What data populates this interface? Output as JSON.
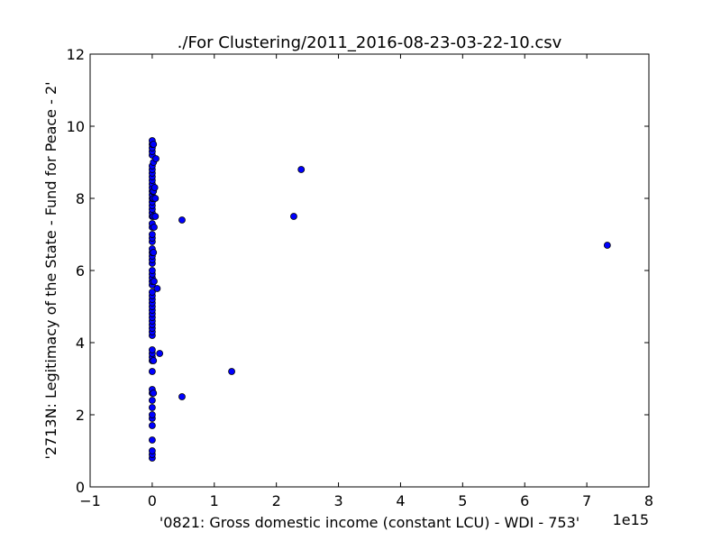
{
  "chart_data": {
    "type": "scatter",
    "title": "./For Clustering/2011_2016-08-23-03-22-10.csv",
    "xlabel": "'0821: Gross domestic income  (constant LCU) - WDI - 753'",
    "ylabel": "'2713N: Legitimacy of the State - Fund for Peace - 2'",
    "x_offset_label": "1e15",
    "xlim": [
      -1,
      8
    ],
    "ylim": [
      0,
      12
    ],
    "xticks": [
      -1,
      0,
      1,
      2,
      3,
      4,
      5,
      6,
      7,
      8
    ],
    "xtick_labels": [
      "−1",
      "0",
      "1",
      "2",
      "3",
      "4",
      "5",
      "6",
      "7",
      "8"
    ],
    "yticks": [
      0,
      2,
      4,
      6,
      8,
      10,
      12
    ],
    "ytick_labels": [
      "0",
      "2",
      "4",
      "6",
      "8",
      "10",
      "12"
    ],
    "grid": false,
    "marker_color": "#0000ff",
    "marker_edge": "#000000",
    "points": [
      {
        "x": 0.0,
        "y": 0.8
      },
      {
        "x": 0.0,
        "y": 0.9
      },
      {
        "x": 0.0,
        "y": 1.0
      },
      {
        "x": 0.0,
        "y": 1.3
      },
      {
        "x": 0.0,
        "y": 1.7
      },
      {
        "x": 0.0,
        "y": 1.9
      },
      {
        "x": 0.0,
        "y": 2.0
      },
      {
        "x": 0.0,
        "y": 2.2
      },
      {
        "x": 0.0,
        "y": 2.4
      },
      {
        "x": 0.0,
        "y": 2.6
      },
      {
        "x": 0.0,
        "y": 2.7
      },
      {
        "x": 0.0,
        "y": 3.2
      },
      {
        "x": 0.0,
        "y": 3.5
      },
      {
        "x": 0.0,
        "y": 3.6
      },
      {
        "x": 0.0,
        "y": 3.7
      },
      {
        "x": 0.0,
        "y": 3.8
      },
      {
        "x": 0.0,
        "y": 4.2
      },
      {
        "x": 0.0,
        "y": 4.3
      },
      {
        "x": 0.0,
        "y": 4.4
      },
      {
        "x": 0.0,
        "y": 4.5
      },
      {
        "x": 0.0,
        "y": 4.6
      },
      {
        "x": 0.0,
        "y": 4.7
      },
      {
        "x": 0.0,
        "y": 4.8
      },
      {
        "x": 0.0,
        "y": 4.9
      },
      {
        "x": 0.0,
        "y": 5.0
      },
      {
        "x": 0.0,
        "y": 5.1
      },
      {
        "x": 0.0,
        "y": 5.2
      },
      {
        "x": 0.0,
        "y": 5.3
      },
      {
        "x": 0.0,
        "y": 5.4
      },
      {
        "x": 0.0,
        "y": 5.6
      },
      {
        "x": 0.0,
        "y": 5.7
      },
      {
        "x": 0.0,
        "y": 5.8
      },
      {
        "x": 0.0,
        "y": 5.9
      },
      {
        "x": 0.0,
        "y": 6.0
      },
      {
        "x": 0.0,
        "y": 6.2
      },
      {
        "x": 0.0,
        "y": 6.3
      },
      {
        "x": 0.0,
        "y": 6.4
      },
      {
        "x": 0.0,
        "y": 6.5
      },
      {
        "x": 0.0,
        "y": 6.6
      },
      {
        "x": 0.0,
        "y": 6.8
      },
      {
        "x": 0.0,
        "y": 6.9
      },
      {
        "x": 0.0,
        "y": 7.0
      },
      {
        "x": 0.0,
        "y": 7.2
      },
      {
        "x": 0.0,
        "y": 7.3
      },
      {
        "x": 0.0,
        "y": 7.5
      },
      {
        "x": 0.0,
        "y": 7.6
      },
      {
        "x": 0.0,
        "y": 7.7
      },
      {
        "x": 0.0,
        "y": 7.8
      },
      {
        "x": 0.0,
        "y": 7.9
      },
      {
        "x": 0.0,
        "y": 8.0
      },
      {
        "x": 0.0,
        "y": 8.1
      },
      {
        "x": 0.0,
        "y": 8.2
      },
      {
        "x": 0.0,
        "y": 8.3
      },
      {
        "x": 0.0,
        "y": 8.4
      },
      {
        "x": 0.0,
        "y": 8.5
      },
      {
        "x": 0.0,
        "y": 8.6
      },
      {
        "x": 0.0,
        "y": 8.7
      },
      {
        "x": 0.0,
        "y": 8.8
      },
      {
        "x": 0.0,
        "y": 8.9
      },
      {
        "x": 0.0,
        "y": 9.2
      },
      {
        "x": 0.0,
        "y": 9.3
      },
      {
        "x": 0.0,
        "y": 9.4
      },
      {
        "x": 0.0,
        "y": 9.5
      },
      {
        "x": 0.0,
        "y": 9.6
      },
      {
        "x": 0.02,
        "y": 2.6
      },
      {
        "x": 0.02,
        "y": 3.5
      },
      {
        "x": 0.02,
        "y": 6.5
      },
      {
        "x": 0.02,
        "y": 7.5
      },
      {
        "x": 0.02,
        "y": 8.0
      },
      {
        "x": 0.02,
        "y": 8.2
      },
      {
        "x": 0.02,
        "y": 9.0
      },
      {
        "x": 0.02,
        "y": 9.5
      },
      {
        "x": 0.03,
        "y": 5.7
      },
      {
        "x": 0.03,
        "y": 7.2
      },
      {
        "x": 0.04,
        "y": 8.3
      },
      {
        "x": 0.05,
        "y": 7.5
      },
      {
        "x": 0.05,
        "y": 8.0
      },
      {
        "x": 0.06,
        "y": 9.1
      },
      {
        "x": 0.08,
        "y": 5.5
      },
      {
        "x": 0.12,
        "y": 3.7
      },
      {
        "x": 0.48,
        "y": 7.4
      },
      {
        "x": 0.48,
        "y": 2.5
      },
      {
        "x": 1.28,
        "y": 3.2
      },
      {
        "x": 2.28,
        "y": 7.5
      },
      {
        "x": 2.4,
        "y": 8.8
      },
      {
        "x": 7.33,
        "y": 6.7
      }
    ]
  }
}
